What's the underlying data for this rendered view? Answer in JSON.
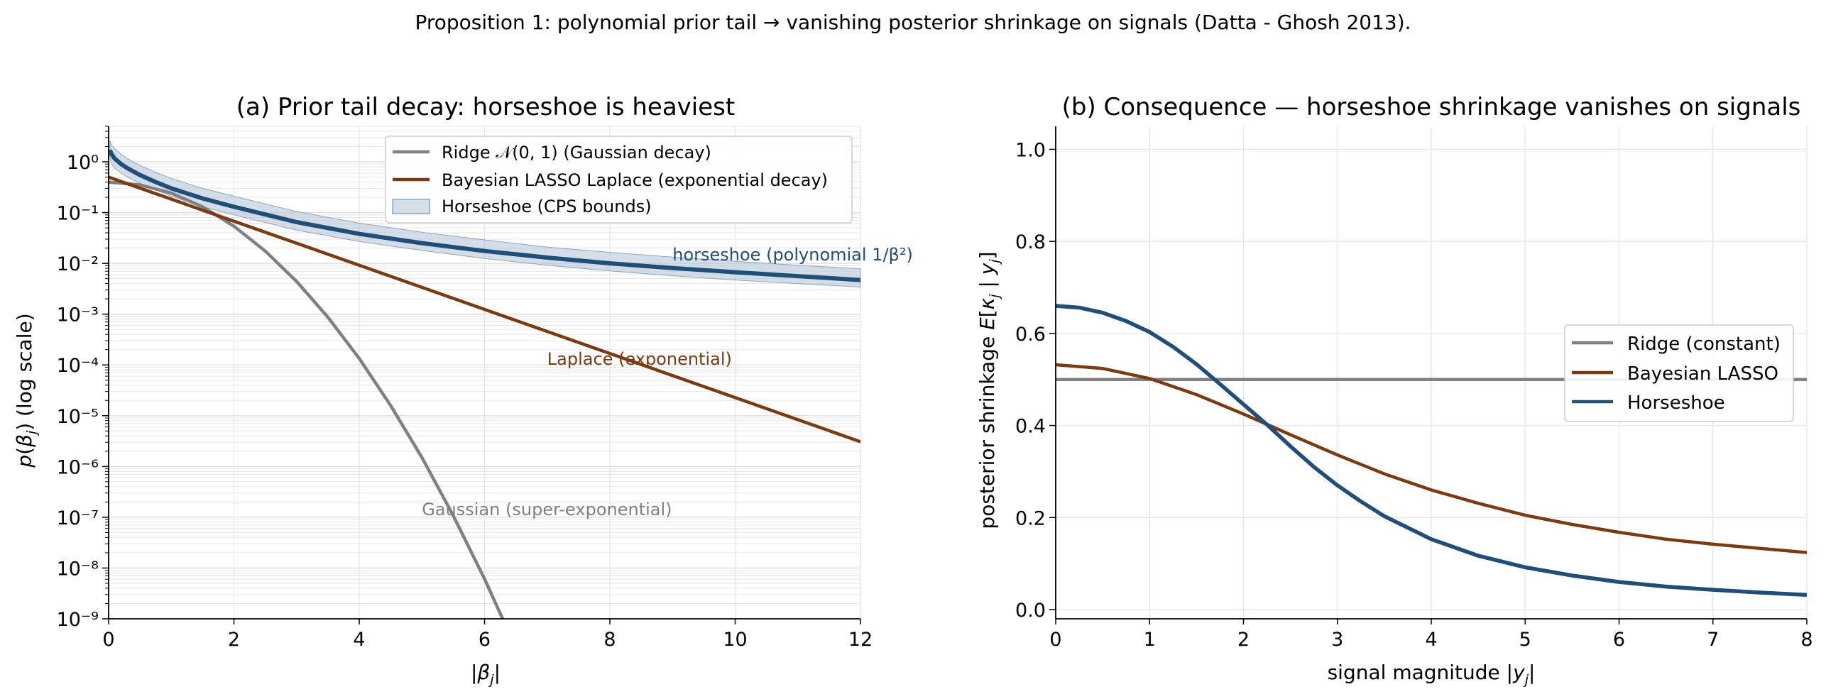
{
  "suptitle": "Proposition 1: polynomial prior tail → vanishing posterior shrinkage on signals (Datta - Ghosh 2013).",
  "colors": {
    "ridge": "#808080",
    "lasso": "#7b3a10",
    "horseshoe": "#1f4e79",
    "band": "#a9bdd4",
    "grid": "#e6e6e6"
  },
  "chart_data": [
    {
      "type": "line",
      "title": "(a) Prior tail decay: horseshoe is heaviest",
      "xlabel": "|βj|",
      "ylabel": "p(βj)  (log scale)",
      "xlim": [
        0,
        12
      ],
      "ylim": [
        1e-09,
        5
      ],
      "yscale": "log",
      "xticks": [
        "0",
        "2",
        "4",
        "6",
        "8",
        "10",
        "12"
      ],
      "yticks": [
        "10⁰",
        "10⁻¹",
        "10⁻²",
        "10⁻³",
        "10⁻⁴",
        "10⁻⁵",
        "10⁻⁶",
        "10⁻⁷",
        "10⁻⁸",
        "10⁻⁹"
      ],
      "grid": true,
      "legend_position": "top-right",
      "series": [
        {
          "name": "Ridge 𝒩(0, 1) (Gaussian decay)",
          "x": [
            0,
            0.5,
            1,
            1.5,
            2,
            2.5,
            3,
            3.5,
            4,
            4.5,
            5,
            5.5,
            6,
            6.4
          ],
          "y": [
            0.399,
            0.352,
            0.242,
            0.13,
            0.054,
            0.0175,
            0.0044,
            0.00087,
            0.000134,
            1.6e-05,
            1.5e-06,
            1.08e-07,
            6.1e-09,
            5e-10
          ]
        },
        {
          "name": "Bayesian LASSO Laplace (exponential decay)",
          "x": [
            0,
            1,
            2,
            3,
            4,
            5,
            6,
            7,
            8,
            9,
            10,
            11,
            12
          ],
          "y": [
            0.5,
            0.184,
            0.0677,
            0.0249,
            0.00916,
            0.00337,
            0.00124,
            0.000456,
            0.000168,
            6.17e-05,
            2.27e-05,
            8.35e-06,
            3.07e-06
          ]
        },
        {
          "name": "horseshoe",
          "x": [
            0.02,
            0.05,
            0.1,
            0.2,
            0.3,
            0.5,
            0.75,
            1,
            1.5,
            2,
            3,
            4,
            5,
            6,
            7,
            8,
            9,
            10,
            11,
            12
          ],
          "y": [
            1.7,
            1.4,
            1.15,
            0.9,
            0.75,
            0.55,
            0.4,
            0.3,
            0.19,
            0.13,
            0.065,
            0.038,
            0.025,
            0.0175,
            0.013,
            0.01,
            0.0081,
            0.0067,
            0.0056,
            0.0047
          ]
        },
        {
          "name": "Horseshoe (CPS bounds)",
          "x": [
            0.02,
            0.05,
            0.1,
            0.2,
            0.3,
            0.5,
            0.75,
            1,
            1.5,
            2,
            3,
            4,
            5,
            6,
            7,
            8,
            9,
            10,
            11,
            12
          ],
          "lower": [
            1.2,
            0.9,
            0.75,
            0.6,
            0.5,
            0.38,
            0.28,
            0.21,
            0.13,
            0.09,
            0.045,
            0.027,
            0.018,
            0.0125,
            0.0092,
            0.0071,
            0.0057,
            0.0047,
            0.004,
            0.0034
          ],
          "upper": [
            2.6,
            2.1,
            1.8,
            1.4,
            1.15,
            0.85,
            0.62,
            0.47,
            0.3,
            0.21,
            0.105,
            0.062,
            0.041,
            0.029,
            0.021,
            0.0165,
            0.0133,
            0.011,
            0.0092,
            0.0078
          ]
        }
      ],
      "legend": [
        {
          "label": "Ridge 𝒩(0, 1) (Gaussian decay)",
          "kind": "line",
          "color": "#808080"
        },
        {
          "label": "Bayesian LASSO Laplace (exponential decay)",
          "kind": "line",
          "color": "#7b3a10"
        },
        {
          "label": "Horseshoe (CPS bounds)",
          "kind": "patch",
          "color": "#a9bdd4"
        }
      ],
      "annotations": [
        {
          "text": "horseshoe (polynomial 1/β²)",
          "x": 9,
          "y": 0.0115,
          "color": "#1f4e79"
        },
        {
          "text": "Laplace (exponential)",
          "x": 7,
          "y": 0.0001,
          "color": "#7b3a10"
        },
        {
          "text": "Gaussian (super-exponential)",
          "x": 5,
          "y": 1.1e-07,
          "color": "#808080"
        }
      ]
    },
    {
      "type": "line",
      "title": "(b) Consequence — horseshoe shrinkage vanishes on signals",
      "xlabel": "signal magnitude |yj|",
      "ylabel": "posterior shrinkage E[κj | yj]",
      "xlim": [
        0,
        8
      ],
      "ylim": [
        -0.02,
        1.05
      ],
      "xticks": [
        "0",
        "1",
        "2",
        "3",
        "4",
        "5",
        "6",
        "7",
        "8"
      ],
      "yticks": [
        "0.0",
        "0.2",
        "0.4",
        "0.6",
        "0.8",
        "1.0"
      ],
      "grid": true,
      "legend_position": "center-right",
      "series": [
        {
          "name": "Ridge (constant)",
          "x": [
            0,
            8
          ],
          "y": [
            0.5,
            0.5
          ]
        },
        {
          "name": "Bayesian LASSO",
          "x": [
            0,
            0.5,
            1,
            1.5,
            2,
            2.5,
            3,
            3.5,
            4,
            4.5,
            5,
            5.5,
            6,
            6.5,
            7,
            7.5,
            8
          ],
          "y": [
            0.532,
            0.524,
            0.502,
            0.467,
            0.425,
            0.38,
            0.336,
            0.295,
            0.26,
            0.231,
            0.205,
            0.185,
            0.168,
            0.153,
            0.142,
            0.133,
            0.124
          ]
        },
        {
          "name": "Horseshoe",
          "x": [
            0,
            0.25,
            0.5,
            0.75,
            1,
            1.25,
            1.5,
            1.75,
            2,
            2.25,
            2.5,
            2.75,
            3,
            3.25,
            3.5,
            4,
            4.5,
            5,
            5.5,
            6,
            6.5,
            7,
            7.5,
            8
          ],
          "y": [
            0.66,
            0.656,
            0.645,
            0.627,
            0.603,
            0.571,
            0.533,
            0.49,
            0.446,
            0.402,
            0.355,
            0.31,
            0.27,
            0.235,
            0.203,
            0.153,
            0.117,
            0.092,
            0.074,
            0.06,
            0.05,
            0.043,
            0.037,
            0.032
          ]
        }
      ],
      "legend": [
        {
          "label": "Ridge (constant)",
          "color": "#808080"
        },
        {
          "label": "Bayesian LASSO",
          "color": "#7b3a10"
        },
        {
          "label": "Horseshoe",
          "color": "#1f4e79"
        }
      ]
    }
  ]
}
